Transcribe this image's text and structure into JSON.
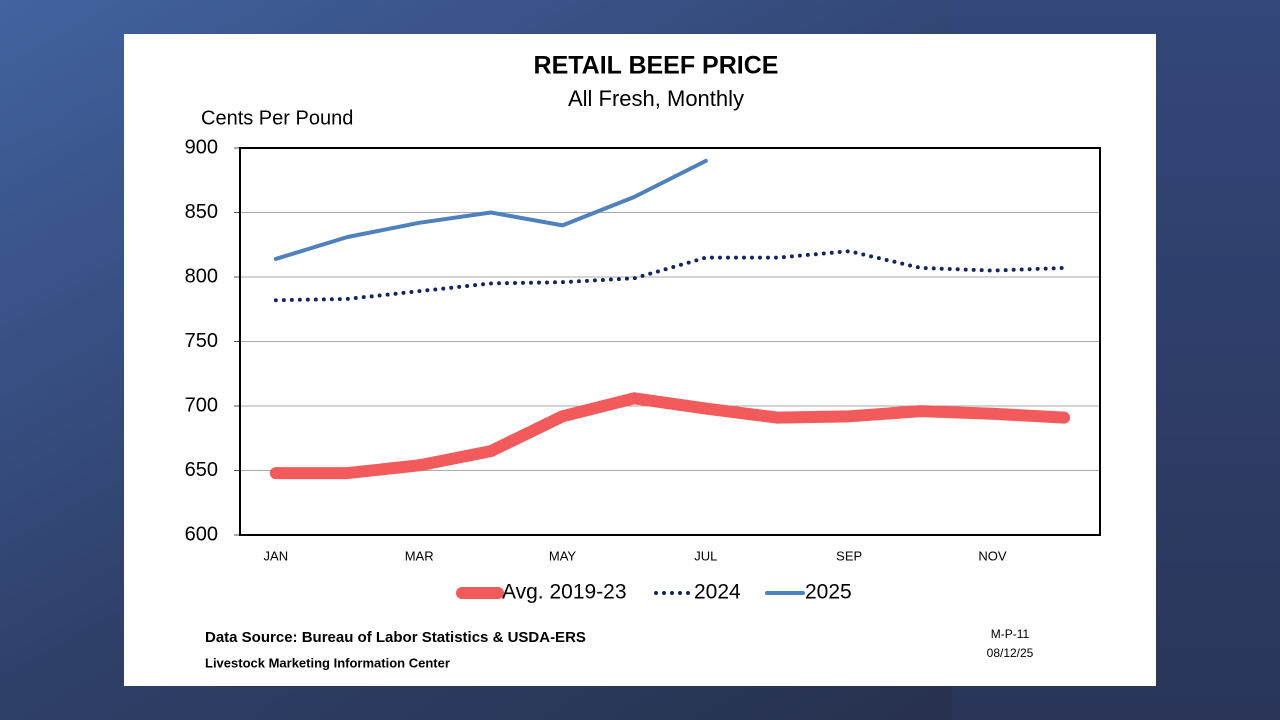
{
  "chart_data": {
    "type": "line",
    "title": "RETAIL BEEF PRICE",
    "subtitle": "All Fresh, Monthly",
    "y_label": "Cents Per Pound",
    "categories": [
      "JAN",
      null,
      "MAR",
      null,
      "MAY",
      null,
      "JUL",
      null,
      "SEP",
      null,
      "NOV",
      null
    ],
    "series": [
      {
        "name": "Avg. 2019-23",
        "color": "#f25a5c",
        "style": "thick",
        "values": [
          648,
          648,
          654,
          665,
          692,
          706,
          698,
          691,
          692,
          696,
          694,
          691
        ]
      },
      {
        "name": "2024",
        "color": "#14275a",
        "style": "dotted",
        "values": [
          782,
          783,
          789,
          795,
          796,
          799,
          815,
          815,
          820,
          807,
          805,
          807
        ]
      },
      {
        "name": "2025",
        "color": "#4f81bd",
        "style": "solid",
        "values": [
          814,
          831,
          842,
          850,
          840,
          862,
          890,
          null,
          null,
          null,
          null,
          null
        ]
      }
    ],
    "ylim": [
      600,
      900
    ],
    "yticks": [
      600,
      650,
      700,
      750,
      800,
      850,
      900
    ],
    "grid": true,
    "legend": "bottom",
    "source": "Data Source: Bureau of Labor Statistics & USDA-ERS",
    "credit": "Livestock Marketing Information Center",
    "code": "M-P-11",
    "date": "08/12/25"
  }
}
